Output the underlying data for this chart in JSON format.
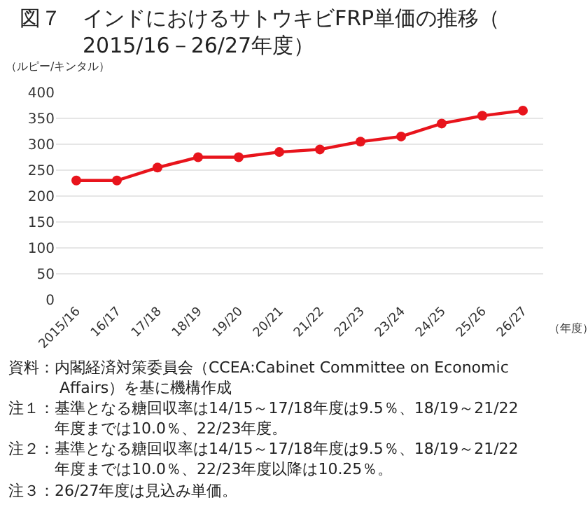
{
  "chart_data": {
    "type": "line",
    "title": "図７　インドにおけるサトウキビFRP単価の推移（2015/16－26/27年度）",
    "ylabel": "（ルピー/キンタル）",
    "xlabel": "（年度）",
    "categories": [
      "2015/16",
      "16/17",
      "17/18",
      "18/19",
      "19/20",
      "20/21",
      "21/22",
      "22/23",
      "23/24",
      "24/25",
      "25/26",
      "26/27"
    ],
    "series": [
      {
        "color": "#e8141c",
        "values": [
          230,
          230,
          255,
          275,
          275,
          285,
          290,
          305,
          315,
          340,
          355,
          365
        ]
      }
    ],
    "ylim": [
      0,
      400
    ],
    "yticks": [
      0,
      50,
      100,
      150,
      200,
      250,
      300,
      350,
      400
    ],
    "grid": "y",
    "marker": "circle",
    "line_style": "solid",
    "legend": false,
    "annotations": [
      "資料：内閣経済対策委員会（CCEA:Cabinet Committee on Economic Affairs）を基に機構作成",
      "注１：基準となる糖回収率は14/15～17/18年度は9.5％、18/19～21/22年度までは10.0％、22/23年度。",
      "注２：基準となる糖回収率は14/15～17/18年度は9.5％、18/19～21/22年度までは10.0％、22/23年度以降は10.25％。",
      "注３：26/27年度は見込み単価。"
    ]
  }
}
